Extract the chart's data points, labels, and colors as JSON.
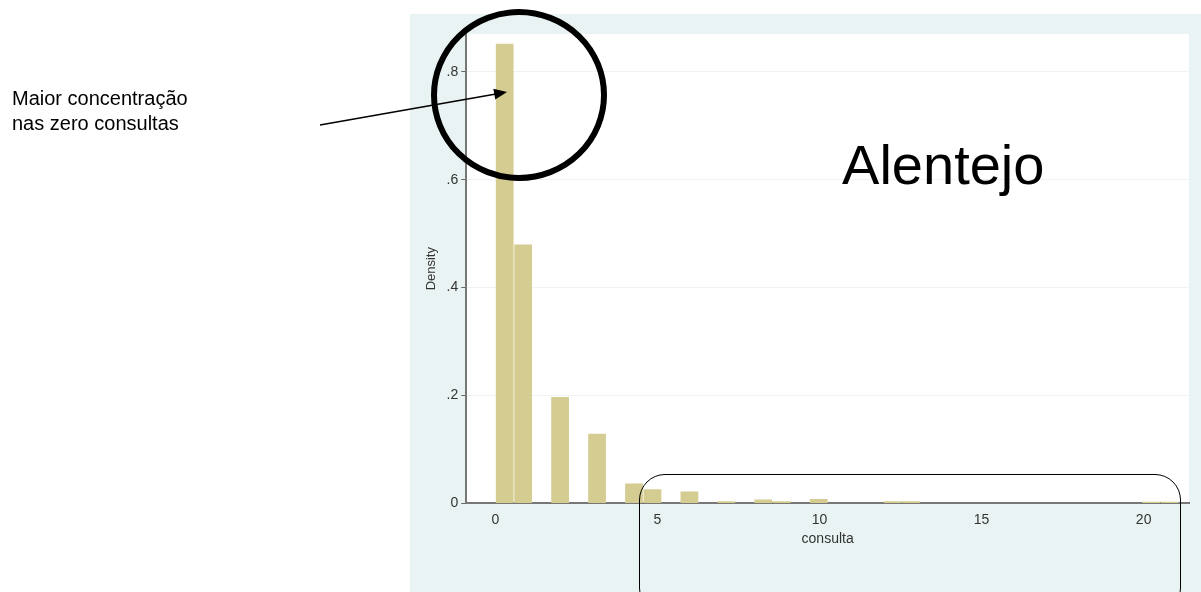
{
  "chart_data": {
    "type": "histogram",
    "title": "Alentejo",
    "xlabel": "consulta",
    "ylabel": "Density",
    "bins": [
      0,
      0.57,
      1.14,
      1.71,
      2.28,
      2.85,
      3.42,
      3.99,
      4.56,
      5.13,
      5.7,
      6.27,
      6.84,
      7.41,
      7.98,
      8.55,
      9.12,
      9.69,
      10.26,
      10.83,
      11.4,
      11.97,
      12.54,
      13.11,
      13.68,
      14.25,
      14.82,
      15.39,
      15.96,
      16.53,
      17.1,
      17.67,
      18.24,
      18.81,
      19.38,
      19.95,
      20.52,
      21.09
    ],
    "values": [
      0.852,
      0.48,
      0,
      0.197,
      0,
      0.129,
      0,
      0.037,
      0.026,
      0,
      0.022,
      0,
      0.004,
      0,
      0.007,
      0.004,
      0,
      0.008,
      0,
      0,
      0,
      0.004,
      0.004,
      0,
      0,
      0,
      0,
      0,
      0,
      0,
      0,
      0,
      0,
      0,
      0,
      0.003,
      0.003
    ],
    "color": "#d5cc91",
    "xlim": [
      -0.9,
      21.4
    ],
    "xticks": [
      0,
      5,
      10,
      15,
      20
    ],
    "ylim": [
      0,
      0.87
    ],
    "yticks": [
      0,
      {
        "value": 0.2,
        "label": ".2"
      },
      {
        "value": 0.4,
        "label": ".4"
      },
      {
        "value": 0.6,
        "label": ".6"
      },
      {
        "value": 0.8,
        "label": ".8"
      }
    ],
    "grid": "y",
    "legend": false,
    "annotations": [
      "Maior concentração nas zero consultas"
    ]
  }
}
